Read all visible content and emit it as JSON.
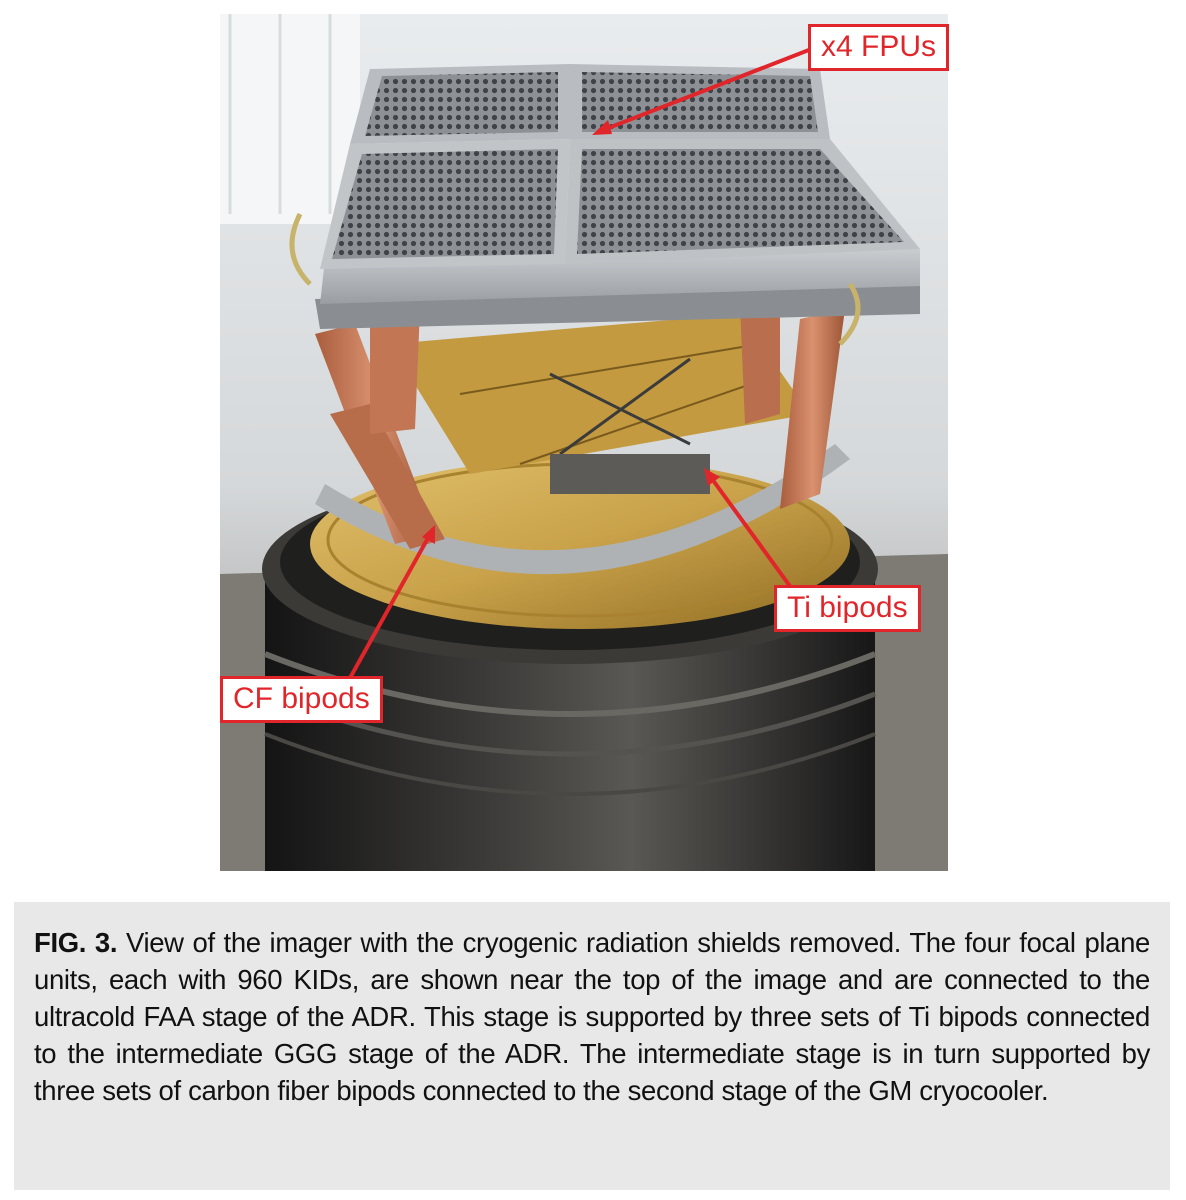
{
  "figure": {
    "callouts": {
      "fpus": "x4 FPUs",
      "ti_bipods": "Ti bipods",
      "cf_bipods": "CF bipods"
    },
    "colors": {
      "callout": "#e0262a",
      "aluminum": "#b8bcc0",
      "copper": "#c77a55",
      "gold": "#c9a24a",
      "dark_body": "#2b2b2b"
    }
  },
  "caption": {
    "label": "FIG. 3.",
    "text": " View of the imager with the cryogenic radiation shields removed. The four focal plane units, each with 960 KIDs, are shown near the top of the image and are connected to the ultracold FAA stage of the ADR. This stage is supported by three sets of Ti bipods connected to the intermediate GGG stage of the ADR. The intermediate stage is in turn supported by three sets of carbon fiber bipods connected to the second stage of the GM cryocooler."
  }
}
